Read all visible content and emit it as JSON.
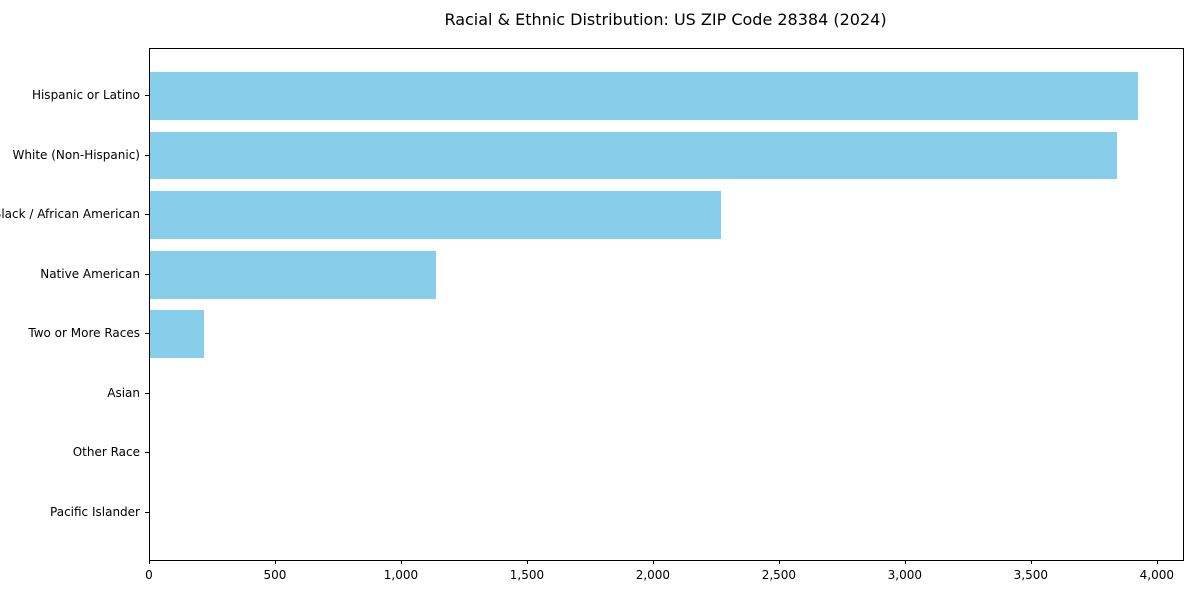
{
  "page": {
    "background_color": "#ffffff",
    "text_color": "#000000"
  },
  "chart_data": {
    "type": "bar",
    "orientation": "horizontal",
    "title": "Racial & Ethnic Distribution: US ZIP Code 28384 (2024)",
    "xlabel": "",
    "ylabel": "",
    "categories": [
      "Hispanic or Latino",
      "White (Non-Hispanic)",
      "Black / African American",
      "Native American",
      "Two or More Races",
      "Asian",
      "Other Race",
      "Pacific Islander"
    ],
    "values": [
      3920,
      3840,
      2265,
      1135,
      215,
      0,
      0,
      0
    ],
    "bar_color": "#87CEEB",
    "xlim": [
      0,
      4100
    ],
    "xticks": [
      {
        "value": 0,
        "label": "0"
      },
      {
        "value": 500,
        "label": "500"
      },
      {
        "value": 1000,
        "label": "1,000"
      },
      {
        "value": 1500,
        "label": "1,500"
      },
      {
        "value": 2000,
        "label": "2,000"
      },
      {
        "value": 2500,
        "label": "2,500"
      },
      {
        "value": 3000,
        "label": "3,000"
      },
      {
        "value": 3500,
        "label": "3,500"
      },
      {
        "value": 4000,
        "label": "4,000"
      }
    ],
    "grid": false,
    "legend": null
  }
}
